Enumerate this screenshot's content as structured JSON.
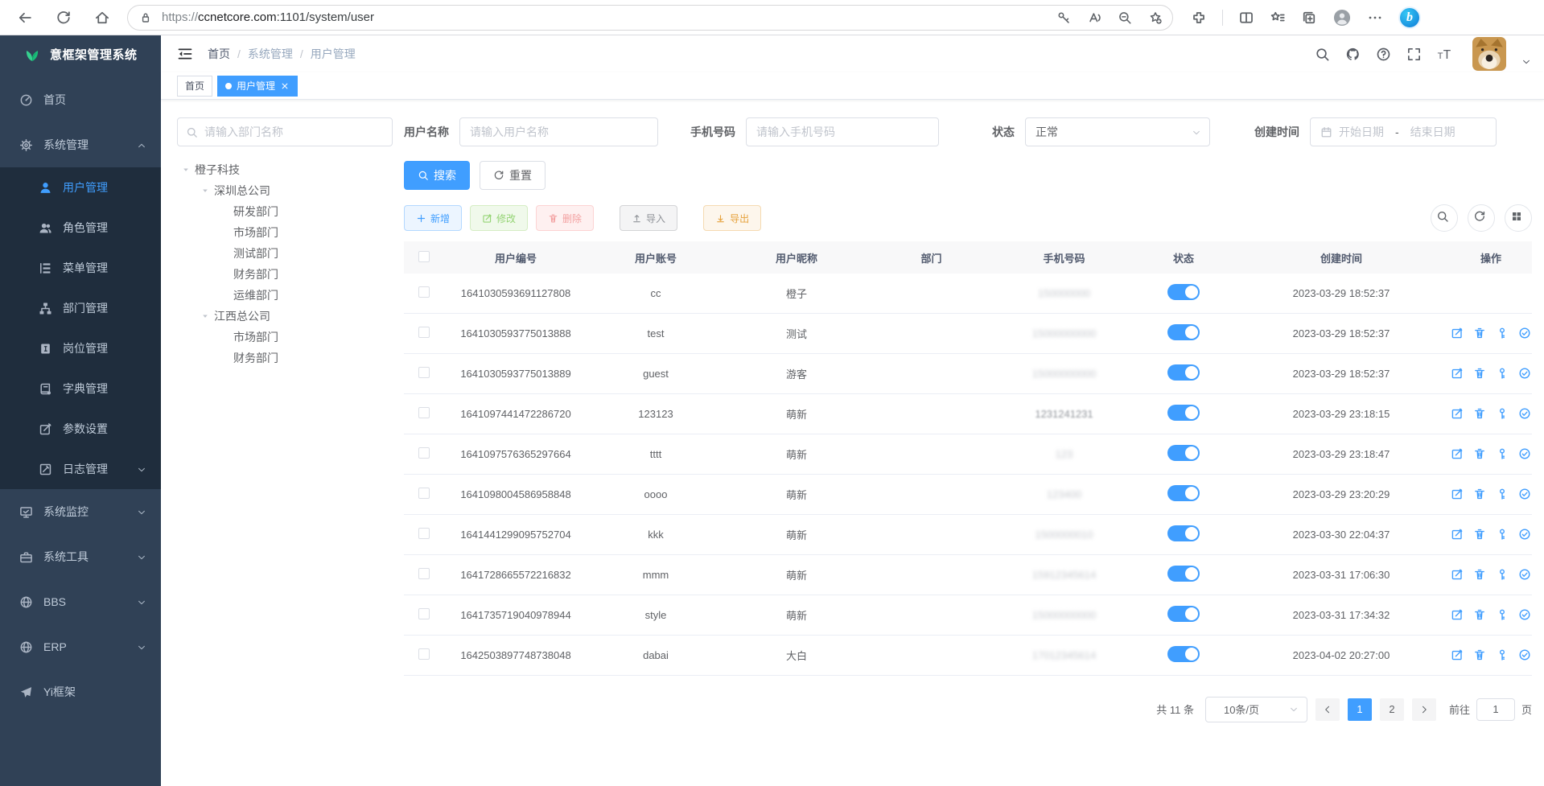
{
  "colors": {
    "accent": "#409EFF",
    "sidebar_bg": "#304156",
    "sidebar_sub_bg": "#1f2d3d",
    "success": "#67c23a",
    "danger": "#f56c6c",
    "warning": "#e6a23c",
    "info": "#909399"
  },
  "browser": {
    "url": "https://ccnetcore.com:1101/system/user",
    "url_protocol": "https://",
    "url_host": "ccnetcore.com",
    "url_path": ":1101/system/user",
    "nav_icons": [
      "back-icon",
      "reload-icon",
      "home-icon"
    ],
    "pill_icons": [
      "key-icon",
      "read-aloud-icon",
      "zoom-out-icon",
      "favorite-add-icon"
    ],
    "right_icons": [
      "extensions-icon",
      "split-screen-icon",
      "collections-icon",
      "copy-add-icon",
      "profile-icon",
      "more-icon",
      "bing-icon"
    ]
  },
  "app": {
    "title": "意框架管理系统",
    "logo_icon": "plant-icon"
  },
  "breadcrumb": {
    "items": [
      "首页",
      "系统管理",
      "用户管理"
    ],
    "separator": "/"
  },
  "header_icons": [
    "search-icon",
    "github-icon",
    "help-icon",
    "fullscreen-icon",
    "font-size-icon"
  ],
  "tabs": [
    {
      "label": "首页",
      "active": false,
      "closable": false
    },
    {
      "label": "用户管理",
      "active": true,
      "closable": true
    }
  ],
  "sidebar": {
    "items": [
      {
        "label": "首页",
        "icon": "dashboard-icon"
      },
      {
        "label": "系统管理",
        "icon": "gear-icon",
        "arrow": "up",
        "children": [
          {
            "label": "用户管理",
            "icon": "user-icon",
            "active": true
          },
          {
            "label": "角色管理",
            "icon": "users-icon"
          },
          {
            "label": "菜单管理",
            "icon": "menu-tree-icon"
          },
          {
            "label": "部门管理",
            "icon": "org-icon"
          },
          {
            "label": "岗位管理",
            "icon": "badge-icon"
          },
          {
            "label": "字典管理",
            "icon": "dict-icon"
          },
          {
            "label": "参数设置",
            "icon": "pen-square-icon"
          },
          {
            "label": "日志管理",
            "icon": "log-icon",
            "arrow": "down"
          }
        ]
      },
      {
        "label": "系统监控",
        "icon": "monitor-icon",
        "arrow": "down"
      },
      {
        "label": "系统工具",
        "icon": "toolbox-icon",
        "arrow": "down"
      },
      {
        "label": "BBS",
        "icon": "globe-icon",
        "arrow": "down"
      },
      {
        "label": "ERP",
        "icon": "globe-icon",
        "arrow": "down"
      },
      {
        "label": "Yi框架",
        "icon": "plane-icon"
      }
    ]
  },
  "filters": {
    "dept_placeholder": "请输入部门名称",
    "username_label": "用户名称",
    "username_placeholder": "请输入用户名称",
    "phone_label": "手机号码",
    "phone_placeholder": "请输入手机号码",
    "status_label": "状态",
    "status_value": "正常",
    "created_label": "创建时间",
    "date_start_placeholder": "开始日期",
    "date_dash": "-",
    "date_end_placeholder": "结束日期"
  },
  "toolbar": {
    "search_label": "搜索",
    "reset_label": "重置",
    "add_label": "新增",
    "edit_label": "修改",
    "delete_label": "删除",
    "import_label": "导入",
    "export_label": "导出",
    "right_tools": [
      "search-icon",
      "refresh-icon",
      "grid-icon"
    ]
  },
  "tree": [
    {
      "label": "橙子科技",
      "children": [
        {
          "label": "深圳总公司",
          "children": [
            {
              "label": "研发部门"
            },
            {
              "label": "市场部门"
            },
            {
              "label": "测试部门"
            },
            {
              "label": "财务部门"
            },
            {
              "label": "运维部门"
            }
          ]
        },
        {
          "label": "江西总公司",
          "children": [
            {
              "label": "市场部门"
            },
            {
              "label": "财务部门"
            }
          ]
        }
      ]
    }
  ],
  "table": {
    "columns": [
      "用户编号",
      "用户账号",
      "用户昵称",
      "部门",
      "手机号码",
      "状态",
      "创建时间",
      "操作"
    ],
    "op_icons": [
      "edit-icon",
      "delete-icon",
      "key-icon",
      "check-circle-icon"
    ],
    "rows": [
      {
        "id": "1641030593691127808",
        "account": "cc",
        "nickname": "橙子",
        "dept": "",
        "phone": "150000000",
        "phone_redacted": true,
        "status": true,
        "created": "2023-03-29 18:52:37",
        "has_ops": false
      },
      {
        "id": "1641030593775013888",
        "account": "test",
        "nickname": "测试",
        "dept": "",
        "phone": "15000000000",
        "phone_redacted": true,
        "status": true,
        "created": "2023-03-29 18:52:37",
        "has_ops": true
      },
      {
        "id": "1641030593775013889",
        "account": "guest",
        "nickname": "游客",
        "dept": "",
        "phone": "15000000000",
        "phone_redacted": true,
        "status": true,
        "created": "2023-03-29 18:52:37",
        "has_ops": true
      },
      {
        "id": "1641097441472286720",
        "account": "123123",
        "nickname": "萌新",
        "dept": "",
        "phone": "1231241231",
        "phone_redacted": "light",
        "status": true,
        "created": "2023-03-29 23:18:15",
        "has_ops": true
      },
      {
        "id": "1641097576365297664",
        "account": "tttt",
        "nickname": "萌新",
        "dept": "",
        "phone": "123",
        "phone_redacted": true,
        "status": true,
        "created": "2023-03-29 23:18:47",
        "has_ops": true
      },
      {
        "id": "1641098004586958848",
        "account": "oooo",
        "nickname": "萌新",
        "dept": "",
        "phone": "123400",
        "phone_redacted": true,
        "status": true,
        "created": "2023-03-29 23:20:29",
        "has_ops": true
      },
      {
        "id": "1641441299095752704",
        "account": "kkk",
        "nickname": "萌新",
        "dept": "",
        "phone": "1500000010",
        "phone_redacted": true,
        "status": true,
        "created": "2023-03-30 22:04:37",
        "has_ops": true
      },
      {
        "id": "1641728665572216832",
        "account": "mmm",
        "nickname": "萌新",
        "dept": "",
        "phone": "15912345614",
        "phone_redacted": true,
        "status": true,
        "created": "2023-03-31 17:06:30",
        "has_ops": true
      },
      {
        "id": "1641735719040978944",
        "account": "style",
        "nickname": "萌新",
        "dept": "",
        "phone": "15000000000",
        "phone_redacted": true,
        "status": true,
        "created": "2023-03-31 17:34:32",
        "has_ops": true
      },
      {
        "id": "1642503897748738048",
        "account": "dabai",
        "nickname": "大白",
        "dept": "",
        "phone": "17012345614",
        "phone_redacted": true,
        "status": true,
        "created": "2023-04-02 20:27:00",
        "has_ops": true
      }
    ]
  },
  "pagination": {
    "total_text": "共 11 条",
    "page_size": "10条/页",
    "pages": [
      "1",
      "2"
    ],
    "current_page": "1",
    "prev_disabled": true,
    "goto_label": "前往",
    "goto_value": "1",
    "page_unit": "页"
  }
}
